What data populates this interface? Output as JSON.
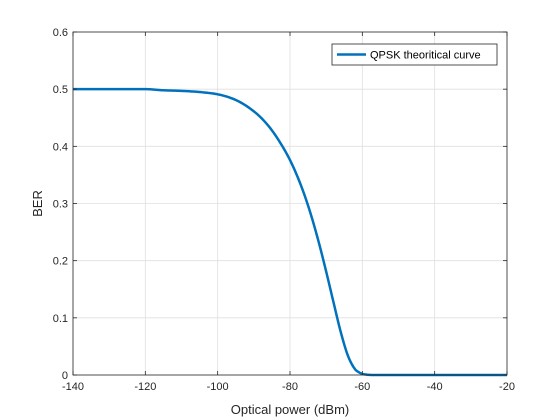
{
  "chart_data": {
    "type": "line",
    "title": "",
    "xlabel": "Optical power (dBm)",
    "ylabel": "BER",
    "xlim": [
      -140,
      -20
    ],
    "ylim": [
      0,
      0.6
    ],
    "xticks": [
      -140,
      -120,
      -100,
      -80,
      -60,
      -40,
      -20
    ],
    "yticks": [
      0,
      0.1,
      0.2,
      0.3,
      0.4,
      0.5,
      0.6
    ],
    "xtick_labels": [
      "-140",
      "-120",
      "-100",
      "-80",
      "-60",
      "-40",
      "-20"
    ],
    "ytick_labels": [
      "0",
      "0.1",
      "0.2",
      "0.3",
      "0.4",
      "0.5",
      "0.6"
    ],
    "grid": true,
    "legend_position": "top-right",
    "series": [
      {
        "name": "QPSK theoritical curve",
        "color": "#0072bd",
        "x": [
          -140,
          -130,
          -120,
          -115,
          -110,
          -105,
          -100,
          -97,
          -94,
          -91,
          -88,
          -85,
          -82,
          -80,
          -78,
          -76,
          -74,
          -72,
          -70,
          -68,
          -66,
          -64,
          -62,
          -61,
          -60,
          -59,
          -58,
          -57,
          -56,
          -55,
          -50,
          -40,
          -30,
          -20
        ],
        "y": [
          0.5,
          0.5,
          0.5,
          0.498,
          0.497,
          0.495,
          0.491,
          0.486,
          0.478,
          0.466,
          0.45,
          0.428,
          0.399,
          0.376,
          0.348,
          0.315,
          0.276,
          0.231,
          0.181,
          0.128,
          0.076,
          0.034,
          0.01,
          0.005,
          0.002,
          0.0008,
          0.0002,
          5e-05,
          1e-05,
          0,
          0,
          0,
          0,
          0
        ]
      }
    ]
  }
}
